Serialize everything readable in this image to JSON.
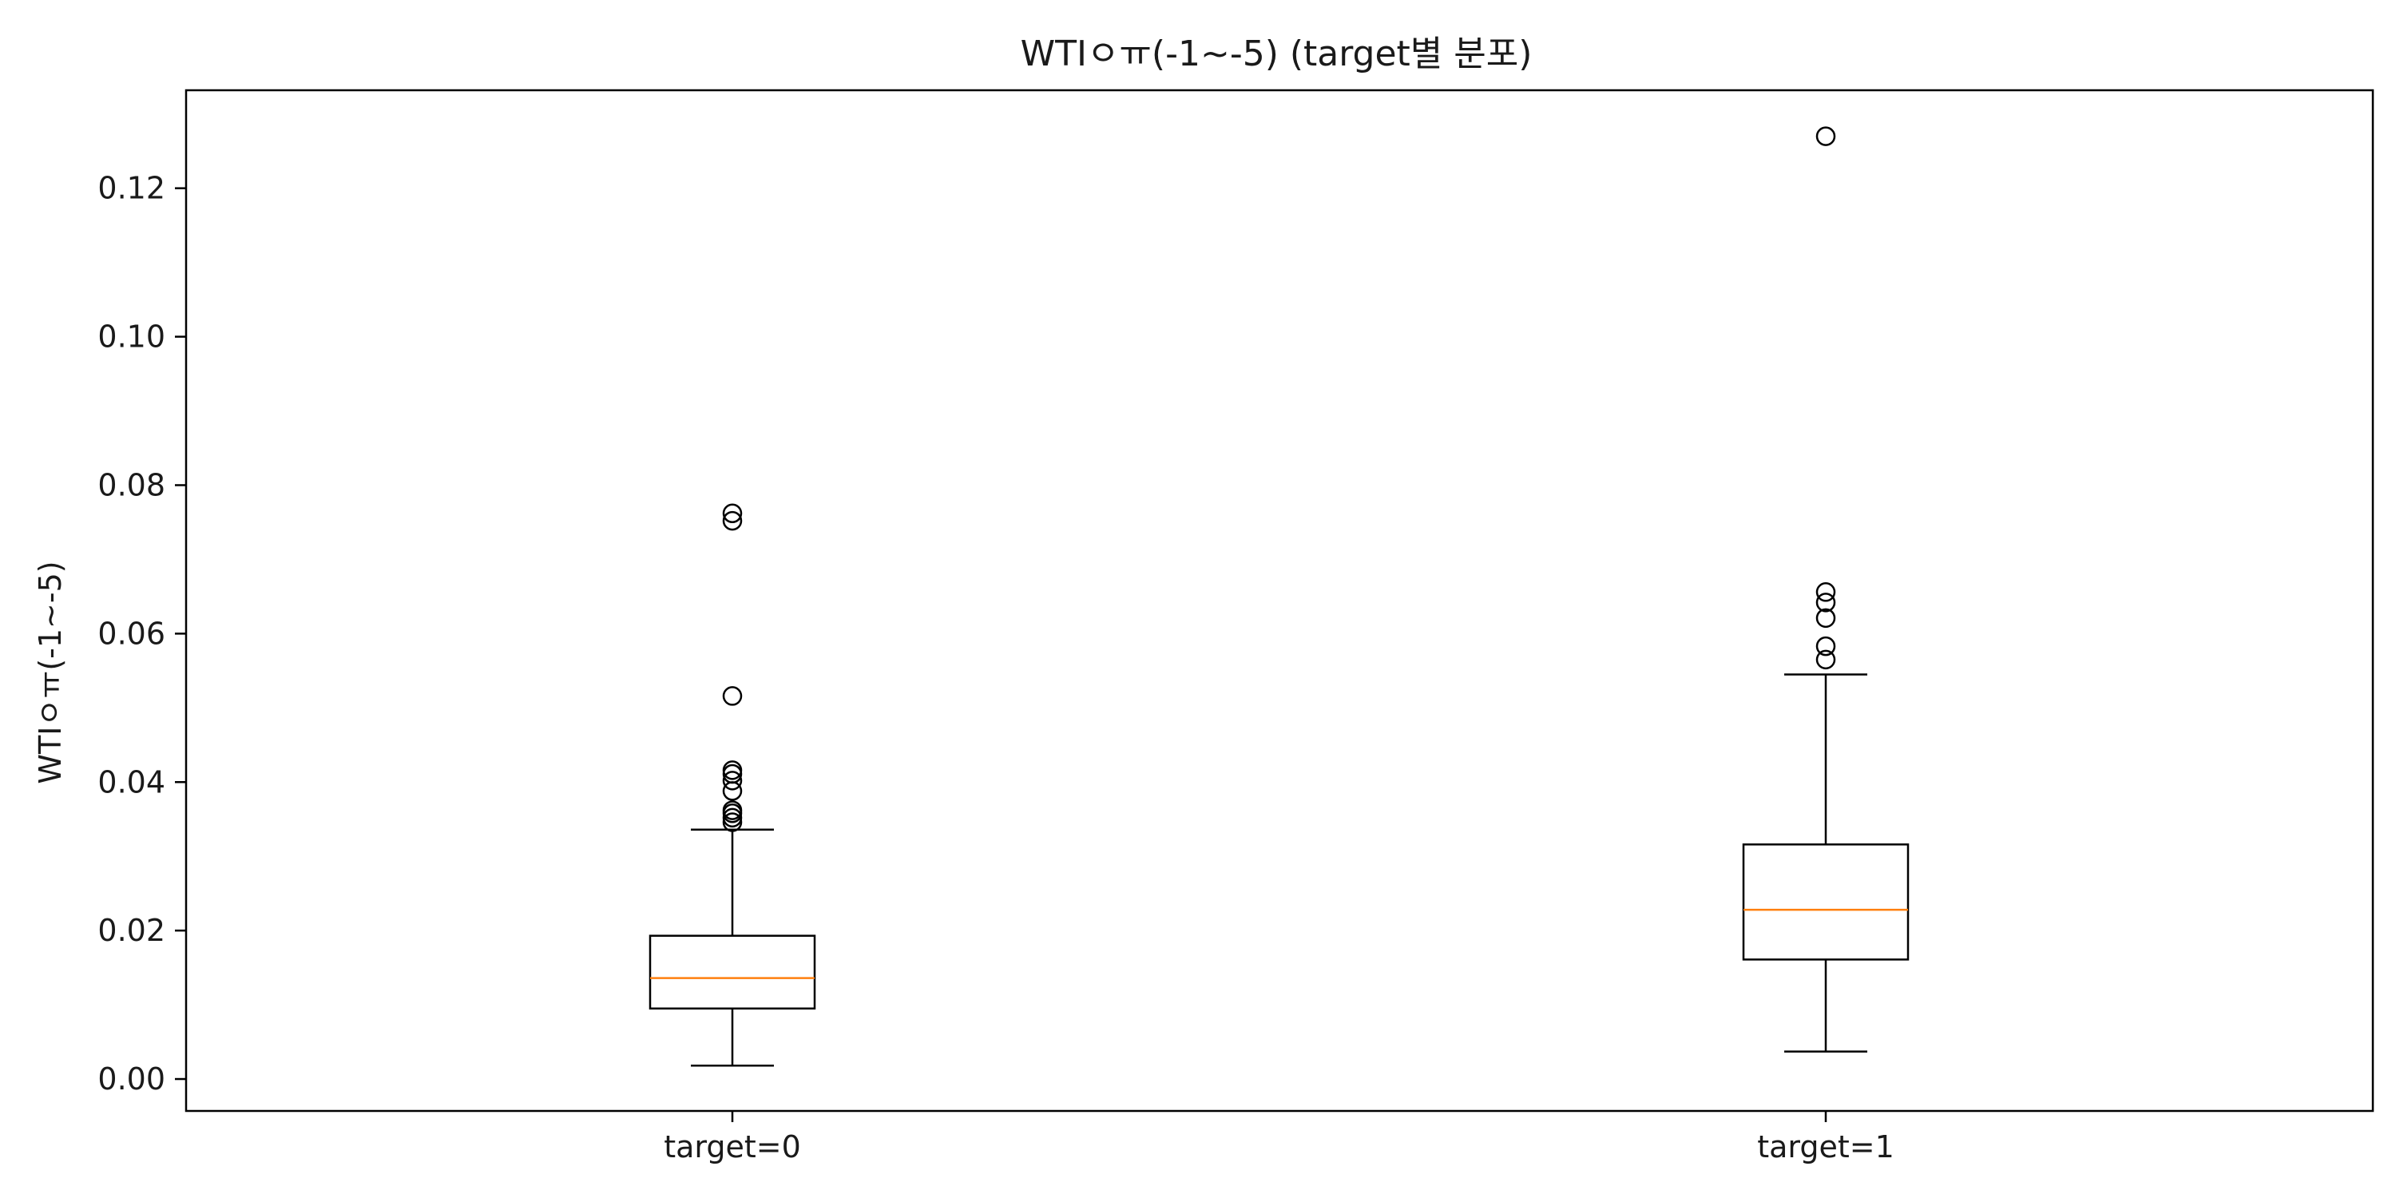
{
  "chart_data": {
    "type": "box",
    "title": "WTIㅇㅠ(-1~-5) (target별 분포)",
    "xlabel": "",
    "ylabel": "WTIㅇㅠ(-1~-5)",
    "ylim": [
      -0.0043,
      0.1332
    ],
    "yticks": [
      0.0,
      0.02,
      0.04,
      0.06,
      0.08,
      0.1,
      0.12
    ],
    "ytick_labels": [
      "0.00",
      "0.02",
      "0.04",
      "0.06",
      "0.08",
      "0.10",
      "0.12"
    ],
    "grid": false,
    "categories": [
      "target=0",
      "target=1"
    ],
    "series": [
      {
        "category": "target=0",
        "whisker_low": 0.0018,
        "q1": 0.0095,
        "median": 0.0136,
        "q3": 0.0193,
        "whisker_high": 0.0336,
        "outliers": [
          0.0346,
          0.0352,
          0.0358,
          0.0362,
          0.0388,
          0.0402,
          0.0411,
          0.0416,
          0.0516,
          0.0752,
          0.0762
        ]
      },
      {
        "category": "target=1",
        "whisker_low": 0.0037,
        "q1": 0.0161,
        "median": 0.0228,
        "q3": 0.0316,
        "whisker_high": 0.0545,
        "outliers": [
          0.0565,
          0.0583,
          0.0621,
          0.0642,
          0.0656,
          0.127
        ]
      }
    ],
    "colors": {
      "box": "#000000",
      "median": "#ff7f0e",
      "axes": "#000000"
    }
  }
}
